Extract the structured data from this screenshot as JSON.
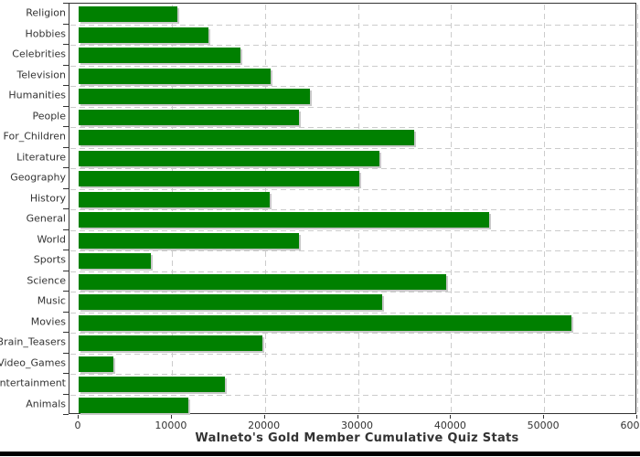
{
  "chart_data": {
    "type": "bar",
    "orientation": "horizontal",
    "title": "Walneto's Gold Member Cumulative Quiz Stats",
    "categories": [
      "Religion",
      "Hobbies",
      "Celebrities",
      "Television",
      "Humanities",
      "People",
      "For_Children",
      "Literature",
      "Geography",
      "History",
      "General",
      "World",
      "Sports",
      "Science",
      "Music",
      "Movies",
      "Brain_Teasers",
      "Video_Games",
      "Entertainment",
      "Animals"
    ],
    "values": [
      10600,
      13900,
      17400,
      20600,
      24800,
      23700,
      36000,
      32300,
      30100,
      20500,
      44100,
      23700,
      7800,
      39500,
      32600,
      52900,
      19700,
      3700,
      15700,
      11800
    ],
    "xlabel": "",
    "ylabel": "",
    "xlim": [
      0,
      60000
    ],
    "x_ticks": [
      0,
      10000,
      20000,
      30000,
      40000,
      50000,
      60000
    ],
    "grid": "dashed-both-axes",
    "legend": "none",
    "bar_color": "#008000",
    "grid_color": "#cccccc",
    "axis_color": "#333333",
    "text_color": "#333333",
    "background_color": "#ffffff"
  }
}
